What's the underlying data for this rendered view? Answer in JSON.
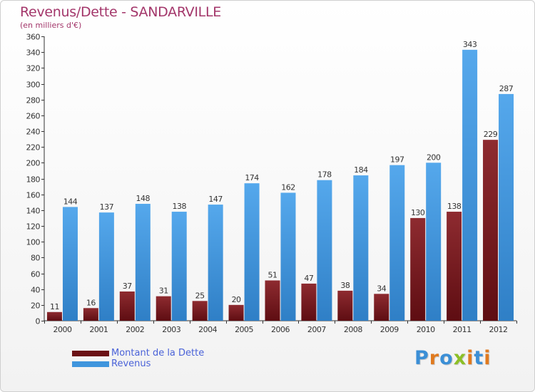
{
  "title": "Revenus/Dette - SANDARVILLE",
  "subtitle": "(en milliers d'€)",
  "brand": {
    "letters": [
      "P",
      "r",
      "o",
      "x",
      "i",
      "t",
      "i"
    ],
    "colors": [
      "#3b8fd6",
      "#e07a1f",
      "#3b8fd6",
      "#8cbf26",
      "#e07a1f",
      "#3b8fd6",
      "#e07a1f"
    ]
  },
  "colors": {
    "dette": "#7a1a1f",
    "revenus": "#3f95dd",
    "title": "#a3366a",
    "legend_text": "#4a62d8"
  },
  "chart_data": {
    "type": "bar",
    "title": "Revenus/Dette - SANDARVILLE",
    "subtitle": "(en milliers d'€)",
    "categories": [
      "2000",
      "2001",
      "2002",
      "2003",
      "2004",
      "2005",
      "2006",
      "2007",
      "2008",
      "2009",
      "2010",
      "2011",
      "2012"
    ],
    "series": [
      {
        "name": "Montant de la Dette",
        "values": [
          11,
          16,
          37,
          31,
          25,
          20,
          51,
          47,
          38,
          34,
          130,
          138,
          229
        ]
      },
      {
        "name": "Revenus",
        "values": [
          144,
          137,
          148,
          138,
          147,
          174,
          162,
          178,
          184,
          197,
          200,
          343,
          287
        ]
      }
    ],
    "ylim": [
      0,
      360
    ],
    "yticks": [
      0,
      20,
      40,
      60,
      80,
      100,
      120,
      140,
      160,
      180,
      200,
      220,
      240,
      260,
      280,
      300,
      320,
      340,
      360
    ],
    "grid": false,
    "legend": "bottom-left"
  }
}
